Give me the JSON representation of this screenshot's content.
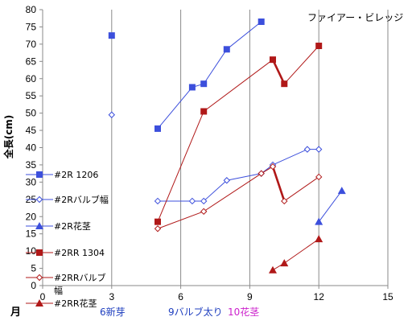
{
  "chart_data": {
    "type": "line",
    "title": "ファイアー・ビレッジ",
    "ylabel": "全長(cm)",
    "xlabel": "月",
    "xlim": [
      0,
      15
    ],
    "ylim": [
      0,
      80
    ],
    "x_ticks": [
      0,
      3,
      6,
      9,
      12,
      15
    ],
    "y_ticks": [
      0,
      5,
      10,
      15,
      20,
      25,
      30,
      35,
      40,
      45,
      50,
      55,
      60,
      65,
      70,
      75,
      80
    ],
    "grid": "vertical",
    "legend_position": "left",
    "series": [
      {
        "name": "#2R 1206",
        "color": "#3c4fdc",
        "marker": "square",
        "line": "thin",
        "points": [
          [
            3,
            72.5
          ],
          [
            5,
            45.5
          ],
          [
            6.5,
            57.5
          ],
          [
            7,
            58.5
          ],
          [
            8,
            68.5
          ],
          [
            9.5,
            76.5
          ]
        ],
        "segments": [
          [
            1,
            5
          ]
        ]
      },
      {
        "name": "#2Rバルブ幅",
        "color": "#3c4fdc",
        "marker": "diamond-open",
        "line": "thin",
        "points": [
          [
            3,
            49.5
          ],
          [
            5,
            24.5
          ],
          [
            6.5,
            24.5
          ],
          [
            7,
            24.5
          ],
          [
            8,
            30.5
          ],
          [
            9.5,
            32.5
          ],
          [
            10,
            35
          ],
          [
            11.5,
            39.5
          ],
          [
            12,
            39.5
          ]
        ],
        "segments": [
          [
            1,
            8
          ]
        ]
      },
      {
        "name": "#2R花茎",
        "color": "#3c4fdc",
        "marker": "triangle",
        "line": "thin",
        "points": [
          [
            12,
            18.5
          ],
          [
            13,
            27.5
          ]
        ],
        "segments": [
          [
            0,
            1
          ]
        ]
      },
      {
        "name": "#2RR 1304",
        "color": "#b01818",
        "marker": "square",
        "line": "mixed",
        "points": [
          [
            5,
            18.5
          ],
          [
            7,
            50.5
          ],
          [
            10,
            65.5
          ],
          [
            10.5,
            58.5
          ],
          [
            12,
            69.5
          ]
        ],
        "segments": [
          [
            0,
            2
          ],
          [
            2,
            3,
            "thick"
          ],
          [
            2,
            4
          ]
        ]
      },
      {
        "name": "#2RRバルブ幅",
        "color": "#b01818",
        "marker": "diamond-open",
        "line": "mixed",
        "points": [
          [
            5,
            16.5
          ],
          [
            7,
            21.5
          ],
          [
            9.5,
            32.5
          ],
          [
            10,
            34.5
          ],
          [
            10.5,
            24.5
          ],
          [
            12,
            31.5
          ]
        ],
        "segments": [
          [
            0,
            3
          ],
          [
            3,
            4,
            "thick"
          ],
          [
            3,
            5
          ]
        ]
      },
      {
        "name": "#2RR花茎",
        "color": "#b01818",
        "marker": "triangle",
        "line": "thin",
        "points": [
          [
            10,
            4.5
          ],
          [
            10.5,
            6.5
          ],
          [
            12,
            13.5
          ]
        ],
        "segments": [
          [
            0,
            2
          ]
        ]
      }
    ],
    "annotations": [
      {
        "text": "6新芽",
        "color": "#1f3fbf"
      },
      {
        "text": "9バルブ太り",
        "color": "#1f3fbf"
      },
      {
        "text": "10花茎",
        "color": "#cc22cc"
      }
    ]
  }
}
